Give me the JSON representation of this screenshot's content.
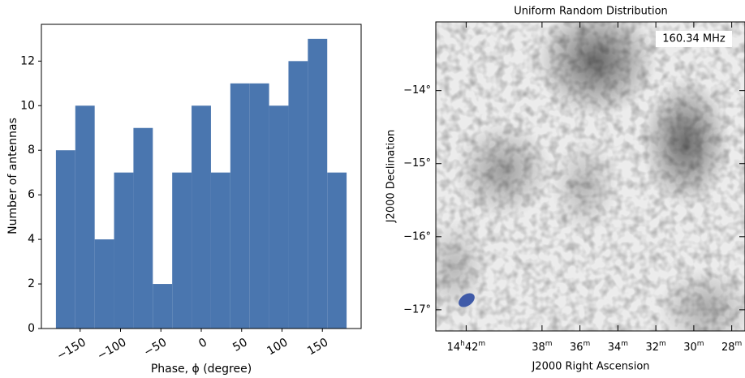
{
  "chart_data": [
    {
      "type": "histogram",
      "xlabel": "Phase, ϕ (degree)",
      "ylabel": "Number of antennas",
      "bins": [
        -180,
        -156,
        -132,
        -108,
        -84,
        -60,
        -36,
        -12,
        12,
        36,
        60,
        84,
        108,
        132,
        156,
        180
      ],
      "values": [
        8,
        10,
        4,
        7,
        9,
        2,
        7,
        10,
        7,
        11,
        11,
        10,
        12,
        13,
        7
      ],
      "color": "#4a76af",
      "xlim": [
        -198,
        198
      ],
      "xticks": [
        {
          "value": -150,
          "label": "−150"
        },
        {
          "value": -100,
          "label": "−100"
        },
        {
          "value": -50,
          "label": "−50"
        },
        0,
        50,
        100,
        150
      ],
      "ylim": [
        0,
        13.65
      ],
      "yticks": [
        0,
        2,
        4,
        6,
        8,
        10,
        12
      ]
    },
    {
      "type": "image",
      "title": "Uniform Random Distribution",
      "annotation": "160.34 MHz",
      "xlabel": "J2000 Right Ascension",
      "ylabel": "J2000 Declination",
      "xlim": [
        43.6,
        27.3
      ],
      "xticks": [
        {
          "value": 42,
          "label": "14h42m"
        },
        {
          "value": 38,
          "label": "38m"
        },
        {
          "value": 36,
          "label": "36m"
        },
        {
          "value": 34,
          "label": "34m"
        },
        {
          "value": 32,
          "label": "32m"
        },
        {
          "value": 30,
          "label": "30m"
        },
        {
          "value": 28,
          "label": "28m"
        }
      ],
      "ylim": [
        -17.29,
        -13.06
      ],
      "yticks": [
        {
          "value": -14,
          "label": "−14°"
        },
        {
          "value": -15,
          "label": "−15°"
        },
        {
          "value": -16,
          "label": "−16°"
        },
        {
          "value": -17,
          "label": "−17°"
        }
      ],
      "beam_color": "#3f5aa8"
    }
  ]
}
